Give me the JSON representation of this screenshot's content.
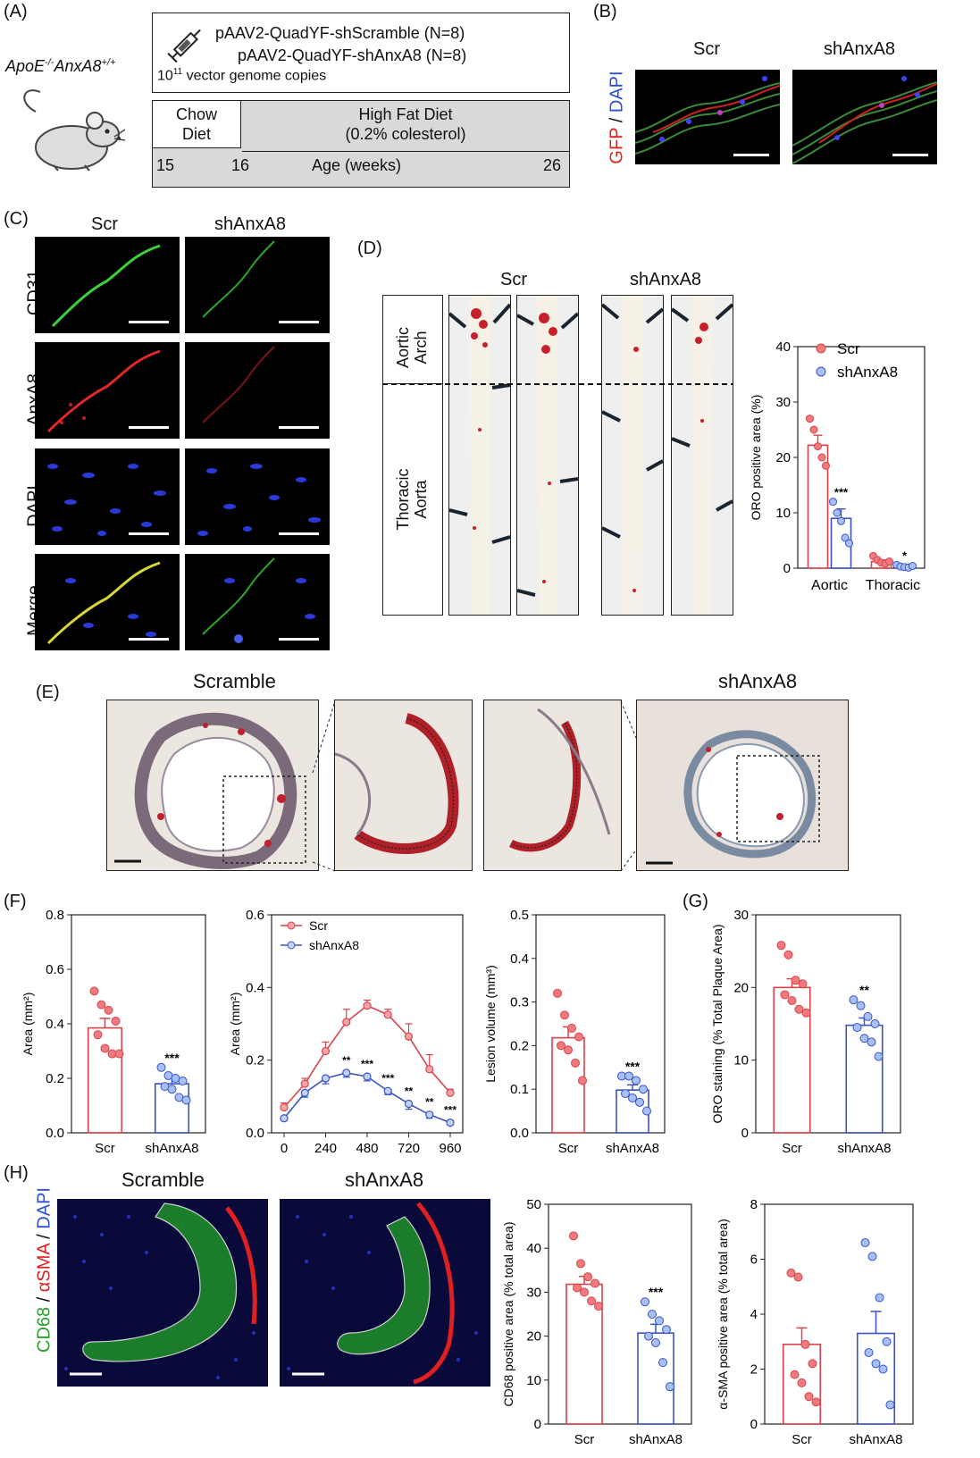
{
  "panels": {
    "A": {
      "label": "(A)",
      "mouse_label": "ApoE-/-AnxA8+/+",
      "mouse_label_parts": [
        "ApoE",
        "-/-",
        "AnxA8",
        "+/+"
      ],
      "line1": "pAAV2-QuadYF-shScramble (N=8)",
      "line2": "pAAV2-QuadYF-shAnxA8 (N=8)",
      "vector_base": "10",
      "vector_exp": "11",
      "vector_text": " vector genome copies",
      "chow": "Chow Diet",
      "chow_line1": "Chow",
      "chow_line2": "Diet",
      "hfd_line1": "High Fat Diet",
      "hfd_line2": "(0.2% colesterol)",
      "age_15": "15",
      "age_16": "16",
      "age_label": "Age (weeks)",
      "age_26": "26"
    },
    "B": {
      "label": "(B)",
      "col1": "Scr",
      "col2": "shAnxA8",
      "ylabel_gfp": "GFP",
      "ylabel_sep": " / ",
      "ylabel_dapi": "DAPI"
    },
    "C": {
      "label": "(C)",
      "col1": "Scr",
      "col2": "shAnxA8",
      "rows": [
        "CD31",
        "AnxA8",
        "DAPI",
        "Merge"
      ]
    },
    "D": {
      "label": "(D)",
      "col1": "Scr",
      "col2": "shAnxA8",
      "region1": "Aortic Arch",
      "region1_l1": "Aortic",
      "region1_l2": "Arch",
      "region2_l1": "Thoracic",
      "region2_l2": "Aorta"
    },
    "E": {
      "label": "(E)",
      "col1": "Scramble",
      "col2": "shAnxA8"
    },
    "F": {
      "label": "(F)"
    },
    "G": {
      "label": "(G)"
    },
    "H": {
      "label": "(H)",
      "col1": "Scramble",
      "col2": "shAnxA8",
      "ylabel_cd68": "CD68",
      "ylabel_asma": "αSMA",
      "ylabel_dapi": "DAPI",
      "sep": " / "
    }
  },
  "colors": {
    "scr": "#d9444a",
    "shanxa8": "#3a52c8",
    "gray_box": "#d9d9d9"
  },
  "chart_data": [
    {
      "id": "D-oro",
      "type": "bar",
      "categories": [
        "Aortic",
        "Thoracic"
      ],
      "ylabel": "ORO positive area (%)",
      "ylim": [
        0,
        40
      ],
      "yticks": [
        0,
        10,
        20,
        30,
        40
      ],
      "legend": "top-right",
      "series": [
        {
          "name": "Scr",
          "values": [
            22.2,
            1.2
          ],
          "err": [
            1.8,
            0.3
          ],
          "points": [
            [
              27,
              25,
              22,
              20,
              18.5
            ],
            [
              2.2,
              1.5,
              1.0,
              0.8,
              1.2
            ]
          ]
        },
        {
          "name": "shAnxA8",
          "values": [
            9.0,
            0.3
          ],
          "err": [
            1.7,
            0.1
          ],
          "points": [
            [
              12,
              10,
              8.5,
              5.5,
              4.5
            ],
            [
              0.6,
              0.3,
              0.2,
              0.1,
              0.4
            ]
          ]
        }
      ],
      "annotations": [
        {
          "cat": 0,
          "text": "***"
        },
        {
          "cat": 1,
          "text": "*"
        }
      ]
    },
    {
      "id": "F-area",
      "type": "bar",
      "categories": [
        "Scr",
        "shAnxA8"
      ],
      "ylabel": "Area (mm²)",
      "ylim": [
        0,
        0.8
      ],
      "yticks": [
        0.0,
        0.2,
        0.4,
        0.6,
        0.8
      ],
      "values": [
        0.385,
        0.18
      ],
      "err": [
        0.035,
        0.02
      ],
      "points": [
        [
          0.52,
          0.47,
          0.45,
          0.41,
          0.36,
          0.31,
          0.29,
          0.29
        ],
        [
          0.24,
          0.21,
          0.2,
          0.19,
          0.17,
          0.16,
          0.13,
          0.12
        ]
      ],
      "annotations": [
        {
          "cat": 1,
          "text": "***"
        }
      ]
    },
    {
      "id": "F-profile",
      "type": "line",
      "xlabel": "",
      "ylabel": "Area (mm²)",
      "x": [
        0,
        120,
        240,
        360,
        480,
        600,
        720,
        840,
        960
      ],
      "xticks": [
        0,
        240,
        480,
        720,
        960
      ],
      "ylim": [
        0,
        0.6
      ],
      "yticks": [
        0.0,
        0.2,
        0.4,
        0.6
      ],
      "legend": "top-left",
      "series": [
        {
          "name": "Scr",
          "values": [
            0.07,
            0.135,
            0.225,
            0.305,
            0.35,
            0.325,
            0.265,
            0.175,
            0.11
          ],
          "err": [
            0.012,
            0.015,
            0.025,
            0.035,
            0.015,
            0.015,
            0.035,
            0.04,
            0.01
          ]
        },
        {
          "name": "shAnxA8",
          "values": [
            0.04,
            0.11,
            0.15,
            0.165,
            0.155,
            0.115,
            0.08,
            0.05,
            0.028
          ],
          "err": [
            0.006,
            0.012,
            0.015,
            0.012,
            0.012,
            0.01,
            0.015,
            0.01,
            0.006
          ]
        }
      ],
      "annotations": [
        "",
        "",
        "",
        "**",
        "***",
        "***",
        "**",
        "**",
        "***"
      ]
    },
    {
      "id": "F-volume",
      "type": "bar",
      "categories": [
        "Scr",
        "shAnxA8"
      ],
      "ylabel": "Lesion volume (mm³)",
      "ylim": [
        0,
        0.5
      ],
      "yticks": [
        0.0,
        0.1,
        0.2,
        0.3,
        0.4,
        0.5
      ],
      "values": [
        0.218,
        0.098
      ],
      "err": [
        0.025,
        0.012
      ],
      "points": [
        [
          0.32,
          0.27,
          0.24,
          0.22,
          0.2,
          0.19,
          0.16,
          0.12
        ],
        [
          0.13,
          0.13,
          0.12,
          0.1,
          0.09,
          0.08,
          0.07,
          0.05
        ]
      ],
      "annotations": [
        {
          "cat": 1,
          "text": "***"
        }
      ]
    },
    {
      "id": "G-oro",
      "type": "bar",
      "categories": [
        "Scr",
        "shAnxA8"
      ],
      "ylabel": "ORO staining (% Total Plaque Area)",
      "ylim": [
        0,
        30
      ],
      "yticks": [
        0,
        10,
        20,
        30
      ],
      "values": [
        20.0,
        14.8
      ],
      "err": [
        1.2,
        1.0
      ],
      "points": [
        [
          25.8,
          24.5,
          21.0,
          20.5,
          19.0,
          18.2,
          17.0,
          16.5
        ],
        [
          18.3,
          17.5,
          16.0,
          15.0,
          14.5,
          13.0,
          12.5,
          10.5
        ]
      ],
      "annotations": [
        {
          "cat": 1,
          "text": "**"
        }
      ]
    },
    {
      "id": "H-cd68",
      "type": "bar",
      "categories": [
        "Scr",
        "shAnxA8"
      ],
      "ylabel": "CD68 positive area (% total area)",
      "ylim": [
        0,
        50
      ],
      "yticks": [
        0,
        10,
        20,
        30,
        40,
        50
      ],
      "values": [
        31.8,
        20.7
      ],
      "err": [
        1.8,
        2.0
      ],
      "points": [
        [
          42.8,
          36.5,
          33.5,
          32.0,
          31.0,
          30.0,
          28.0,
          26.8
        ],
        [
          27.8,
          25.0,
          23.5,
          21.5,
          20.0,
          18.5,
          14.0,
          8.5
        ]
      ],
      "annotations": [
        {
          "cat": 1,
          "text": "***"
        }
      ]
    },
    {
      "id": "H-asma",
      "type": "bar",
      "categories": [
        "Scr",
        "shAnxA8"
      ],
      "ylabel": "α-SMA positive area (% total area)",
      "ylim": [
        0,
        8
      ],
      "yticks": [
        0,
        2,
        4,
        6,
        8
      ],
      "values": [
        2.9,
        3.3
      ],
      "err": [
        0.6,
        0.8
      ],
      "points": [
        [
          5.5,
          5.35,
          2.9,
          2.2,
          1.8,
          1.5,
          1.0,
          0.8
        ],
        [
          6.6,
          6.1,
          4.6,
          3.0,
          2.6,
          2.2,
          2.0,
          0.7
        ]
      ],
      "annotations": []
    }
  ]
}
